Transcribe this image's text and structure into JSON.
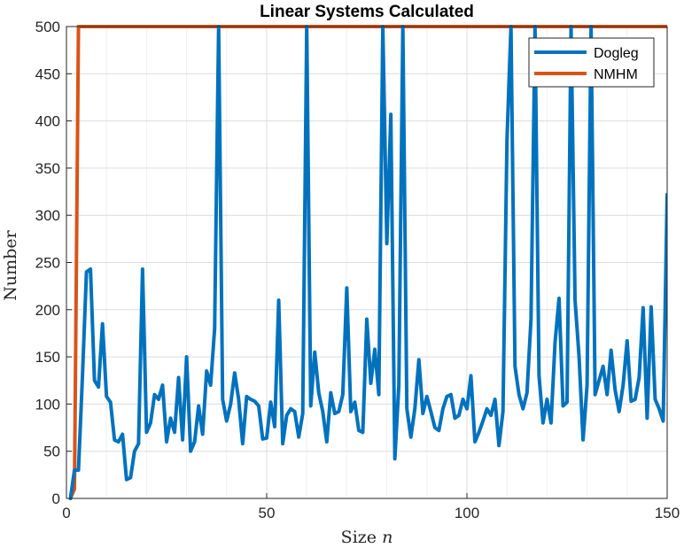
{
  "chart_data": {
    "type": "line",
    "title": "Linear Systems Calculated",
    "xlabel": "Size",
    "xlabel_var": "n",
    "ylabel": "Number",
    "xlim": [
      0,
      150
    ],
    "ylim": [
      0,
      500
    ],
    "xticks": [
      0,
      50,
      100,
      150
    ],
    "xtick_labels": [
      "0",
      "50",
      "100",
      "150"
    ],
    "yticks": [
      0,
      50,
      100,
      150,
      200,
      250,
      300,
      350,
      400,
      450,
      500
    ],
    "ytick_labels": [
      "0",
      "50",
      "100",
      "150",
      "200",
      "250",
      "300",
      "350",
      "400",
      "450",
      "500"
    ],
    "grid": true,
    "legend_position": "top-right",
    "series": [
      {
        "name": "Dogleg",
        "color": "#0072BD",
        "x": [
          1,
          2,
          3,
          4,
          5,
          6,
          7,
          8,
          9,
          10,
          11,
          12,
          13,
          14,
          15,
          16,
          17,
          18,
          19,
          20,
          21,
          22,
          23,
          24,
          25,
          26,
          27,
          28,
          29,
          30,
          31,
          32,
          33,
          34,
          35,
          36,
          37,
          38,
          39,
          40,
          41,
          42,
          43,
          44,
          45,
          46,
          47,
          48,
          49,
          50,
          51,
          52,
          53,
          54,
          55,
          56,
          57,
          58,
          59,
          60,
          61,
          62,
          63,
          64,
          65,
          66,
          67,
          68,
          69,
          70,
          71,
          72,
          73,
          74,
          75,
          76,
          77,
          78,
          79,
          80,
          81,
          82,
          83,
          84,
          85,
          86,
          87,
          88,
          89,
          90,
          91,
          92,
          93,
          94,
          95,
          96,
          97,
          98,
          99,
          100,
          101,
          102,
          103,
          104,
          105,
          106,
          107,
          108,
          109,
          110,
          111,
          112,
          113,
          114,
          115,
          116,
          117,
          118,
          119,
          120,
          121,
          122,
          123,
          124,
          125,
          126,
          127,
          128,
          129,
          130,
          131,
          132,
          133,
          134,
          135,
          136,
          137,
          138,
          139,
          140,
          141,
          142,
          143,
          144,
          145,
          146,
          147,
          148,
          149,
          150
        ],
        "values": [
          0,
          30,
          30,
          130,
          240,
          243,
          125,
          118,
          185,
          108,
          102,
          62,
          60,
          68,
          20,
          22,
          50,
          58,
          243,
          70,
          80,
          110,
          105,
          120,
          60,
          85,
          70,
          128,
          62,
          150,
          50,
          60,
          98,
          68,
          135,
          120,
          180,
          500,
          105,
          82,
          100,
          133,
          105,
          58,
          108,
          105,
          103,
          98,
          63,
          64,
          102,
          76,
          210,
          58,
          88,
          95,
          92,
          65,
          90,
          500,
          98,
          155,
          112,
          92,
          60,
          112,
          90,
          92,
          110,
          223,
          92,
          102,
          72,
          70,
          190,
          122,
          158,
          110,
          500,
          270,
          407,
          42,
          120,
          500,
          95,
          65,
          95,
          147,
          90,
          108,
          92,
          75,
          72,
          95,
          108,
          110,
          85,
          88,
          105,
          95,
          130,
          60,
          70,
          82,
          95,
          88,
          105,
          56,
          92,
          380,
          500,
          140,
          110,
          95,
          112,
          190,
          500,
          130,
          80,
          105,
          80,
          165,
          212,
          98,
          102,
          500,
          210,
          150,
          62,
          120,
          500,
          110,
          125,
          140,
          110,
          157,
          115,
          92,
          120,
          167,
          103,
          105,
          128,
          202,
          85,
          203,
          105,
          95,
          82,
          322
        ]
      },
      {
        "name": "NMHM",
        "color": "#D95319",
        "x": [
          1,
          2,
          3,
          4,
          150
        ],
        "values": [
          0,
          10,
          500,
          500,
          500
        ]
      }
    ]
  }
}
